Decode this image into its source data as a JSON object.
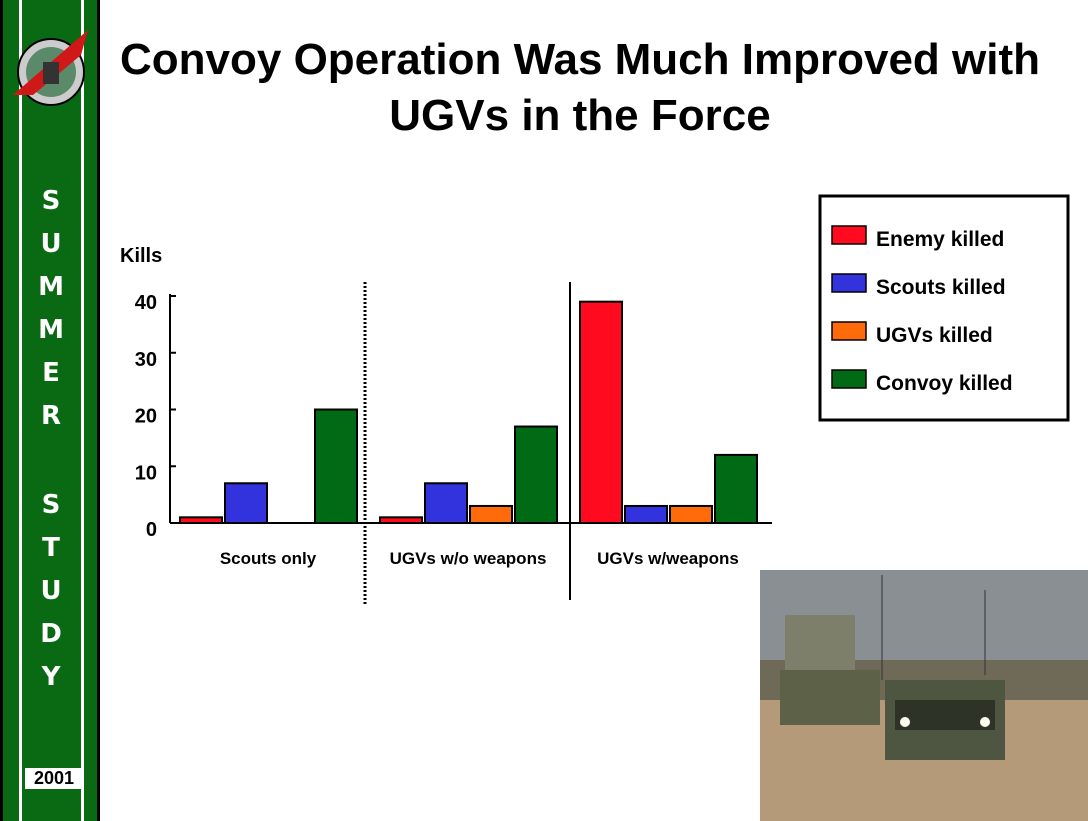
{
  "sidebar": {
    "word1": "SUMMER",
    "word2": "STUDY",
    "year": "2001"
  },
  "chart_data": {
    "type": "bar",
    "title": "Convoy Operation Was Much Improved with UGVs in the Force",
    "y_label": "Kills",
    "categories": [
      "Scouts only",
      "UGVs w/o weapons",
      "UGVs w/weapons"
    ],
    "series": [
      {
        "name": "Enemy killed",
        "color": "#ff0a1e",
        "values": [
          1,
          1,
          39
        ]
      },
      {
        "name": "Scouts killed",
        "color": "#3333dd",
        "values": [
          7,
          7,
          3
        ]
      },
      {
        "name": "UGVs killed",
        "color": "#ff6a0a",
        "values": [
          null,
          3,
          3
        ]
      },
      {
        "name": "Convoy killed",
        "color": "#006a14",
        "values": [
          20,
          17,
          12
        ]
      }
    ],
    "ylim": [
      0,
      40
    ],
    "yticks": [
      0,
      10,
      20,
      30,
      40
    ],
    "legend": "upper right"
  }
}
